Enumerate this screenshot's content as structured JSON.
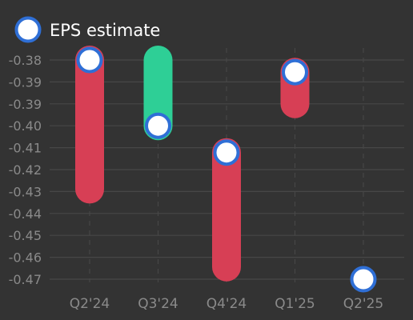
{
  "chart_data": {
    "type": "range-bar",
    "categories": [
      "Q2'24",
      "Q3'24",
      "Q4'24",
      "Q1'25",
      "Q2'25"
    ],
    "series": [
      {
        "name": "EPS estimate",
        "values": [
          -0.38,
          -0.407,
          -0.418,
          -0.385,
          -0.47
        ]
      }
    ],
    "actual_values": [
      -0.433,
      -0.38,
      -0.465,
      -0.398,
      null
    ],
    "ytick_labels": [
      "-0.38",
      "-0.39",
      "-0.39",
      "-0.40",
      "-0.41",
      "-0.42",
      "-0.43",
      "-0.44",
      "-0.45",
      "-0.46",
      "-0.47"
    ],
    "ylim": [
      -0.47,
      -0.38
    ],
    "grid": true,
    "legend_position": "top-left",
    "colors": {
      "background": "#333333",
      "grid": "#474747",
      "miss": "#d73f55",
      "beat": "#2ecf96",
      "marker_fill": "#ffffff",
      "marker_stroke": "#2f6fd6"
    }
  }
}
